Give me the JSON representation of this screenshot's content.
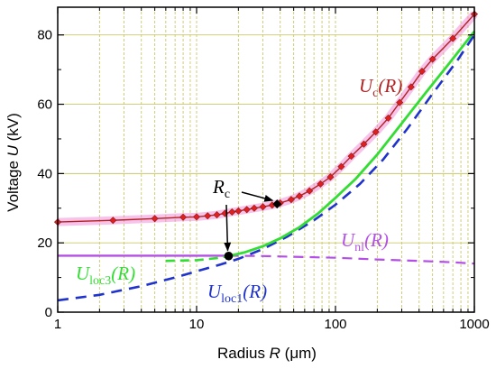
{
  "chart_data": {
    "type": "line",
    "x_scale": "log",
    "xlim": [
      1,
      1000
    ],
    "ylim": [
      0,
      88
    ],
    "x_ticks": [
      "1",
      "10",
      "100",
      "1000"
    ],
    "y_ticks": [
      "0",
      "20",
      "40",
      "60",
      "80"
    ],
    "xlabel": {
      "pre": "Radius ",
      "var": "R",
      "post": " (μm)"
    },
    "ylabel": {
      "pre": "Voltage ",
      "var": "U",
      "post": " (kV)"
    },
    "grid": true,
    "series": [
      {
        "name": "Uc(R)",
        "label_main": "U",
        "label_sub": "c",
        "label_arg": "(R)",
        "color": "#b22222",
        "marker_color": "#e02020",
        "glow_color": "#f07ad0",
        "style": "solid-markers",
        "points": [
          [
            1,
            26
          ],
          [
            2.5,
            26.5
          ],
          [
            5,
            27
          ],
          [
            8,
            27.4
          ],
          [
            10,
            27.5
          ],
          [
            12,
            27.8
          ],
          [
            14,
            28.1
          ],
          [
            16,
            28.5
          ],
          [
            18,
            28.9
          ],
          [
            20,
            29.2
          ],
          [
            23,
            29.6
          ],
          [
            26,
            30.0
          ],
          [
            30,
            30.4
          ],
          [
            35,
            30.9
          ],
          [
            40,
            31.5
          ],
          [
            48,
            32.5
          ],
          [
            55,
            33.5
          ],
          [
            65,
            35.0
          ],
          [
            78,
            37.0
          ],
          [
            92,
            39.0
          ],
          [
            110,
            42.0
          ],
          [
            130,
            45.0
          ],
          [
            160,
            48.5
          ],
          [
            195,
            52.0
          ],
          [
            240,
            56.0
          ],
          [
            290,
            60.5
          ],
          [
            350,
            65.0
          ],
          [
            420,
            69.5
          ],
          [
            500,
            73.0
          ],
          [
            700,
            79.0
          ],
          [
            1000,
            86.0
          ]
        ]
      },
      {
        "name": "Uloc3(R)",
        "label_main": "U",
        "label_sub": "loc3",
        "label_arg": "(R)",
        "color": "#33dd33",
        "style": "dashed-then-solid",
        "dashed_points": [
          [
            6,
            14.8
          ],
          [
            10,
            15.0
          ],
          [
            14,
            15.6
          ],
          [
            17,
            16.2
          ]
        ],
        "points": [
          [
            17,
            16.2
          ],
          [
            22,
            17.2
          ],
          [
            30,
            19.0
          ],
          [
            40,
            21.3
          ],
          [
            55,
            24.5
          ],
          [
            75,
            28.5
          ],
          [
            100,
            33.0
          ],
          [
            140,
            38.5
          ],
          [
            200,
            45.5
          ],
          [
            300,
            54.5
          ],
          [
            450,
            63.5
          ],
          [
            650,
            71.5
          ],
          [
            1000,
            81.0
          ]
        ]
      },
      {
        "name": "Uloc1(R)",
        "label_main": "U",
        "label_sub": "loc1",
        "label_arg": "(R)",
        "color": "#1f33cc",
        "style": "dashed",
        "points": [
          [
            1,
            3.4
          ],
          [
            2,
            5.0
          ],
          [
            4,
            7.5
          ],
          [
            7,
            10.0
          ],
          [
            10,
            11.8
          ],
          [
            15,
            13.8
          ],
          [
            20,
            15.4
          ],
          [
            30,
            18.2
          ],
          [
            45,
            21.8
          ],
          [
            70,
            26.5
          ],
          [
            100,
            31.0
          ],
          [
            150,
            37.0
          ],
          [
            220,
            44.0
          ],
          [
            330,
            53.0
          ],
          [
            500,
            63.0
          ],
          [
            750,
            72.5
          ],
          [
            1000,
            80.0
          ]
        ]
      },
      {
        "name": "Unl(R)",
        "label_main": "U",
        "label_sub": "nl",
        "label_arg": "(R)",
        "color": "#b34fe6",
        "style": "solid-then-dashed",
        "points": [
          [
            1,
            16.3
          ],
          [
            5,
            16.3
          ],
          [
            10,
            16.3
          ],
          [
            17,
            16.3
          ]
        ],
        "dashed_points": [
          [
            17,
            16.3
          ],
          [
            30,
            16.2
          ],
          [
            60,
            15.9
          ],
          [
            100,
            15.7
          ],
          [
            200,
            15.2
          ],
          [
            400,
            14.8
          ],
          [
            700,
            14.4
          ],
          [
            1000,
            14.0
          ]
        ]
      }
    ],
    "annotations": [
      {
        "text_main": "R",
        "text_sub": "c",
        "point": [
          38,
          31.2
        ],
        "target_series": "Uc(R)"
      },
      {
        "point": [
          17,
          16.2
        ],
        "target_series": "Uloc3(R)"
      }
    ]
  }
}
